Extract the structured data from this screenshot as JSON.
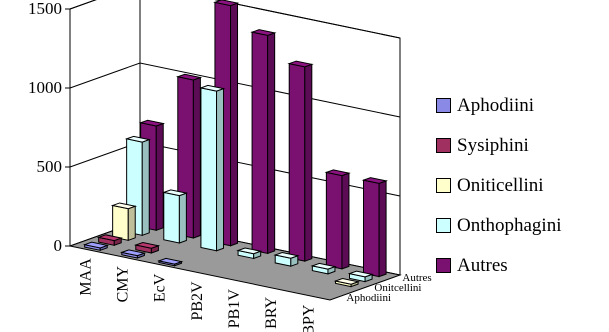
{
  "chart_data": {
    "type": "bar",
    "categories": [
      "MAA",
      "CMY",
      "EcV",
      "PB2V",
      "PB1V",
      "BRY",
      "BPY"
    ],
    "depth_labels": [
      "Aphodiini",
      "Onitcellini",
      "Autres"
    ],
    "series": [
      {
        "name": "Aphodiini",
        "color": "#8A8AE6",
        "values": [
          15,
          15,
          10,
          0,
          0,
          0,
          0
        ]
      },
      {
        "name": "Sysiphini",
        "color": "#A03060",
        "values": [
          30,
          30,
          0,
          0,
          0,
          0,
          0
        ]
      },
      {
        "name": "Oniticellini",
        "color": "#FFFFCC",
        "values": [
          200,
          0,
          0,
          0,
          0,
          0,
          15
        ]
      },
      {
        "name": "Onthophagini",
        "color": "#CCFFFF",
        "values": [
          590,
          300,
          1010,
          30,
          50,
          30,
          30
        ]
      },
      {
        "name": "Autres",
        "color": "#7A1070",
        "values": [
          660,
          1000,
          1520,
          1380,
          1230,
          590,
          590
        ]
      }
    ],
    "ylim": [
      0,
      1500
    ],
    "yticks": [
      0,
      500,
      1000,
      1500
    ],
    "grid": true,
    "legend": "right"
  }
}
